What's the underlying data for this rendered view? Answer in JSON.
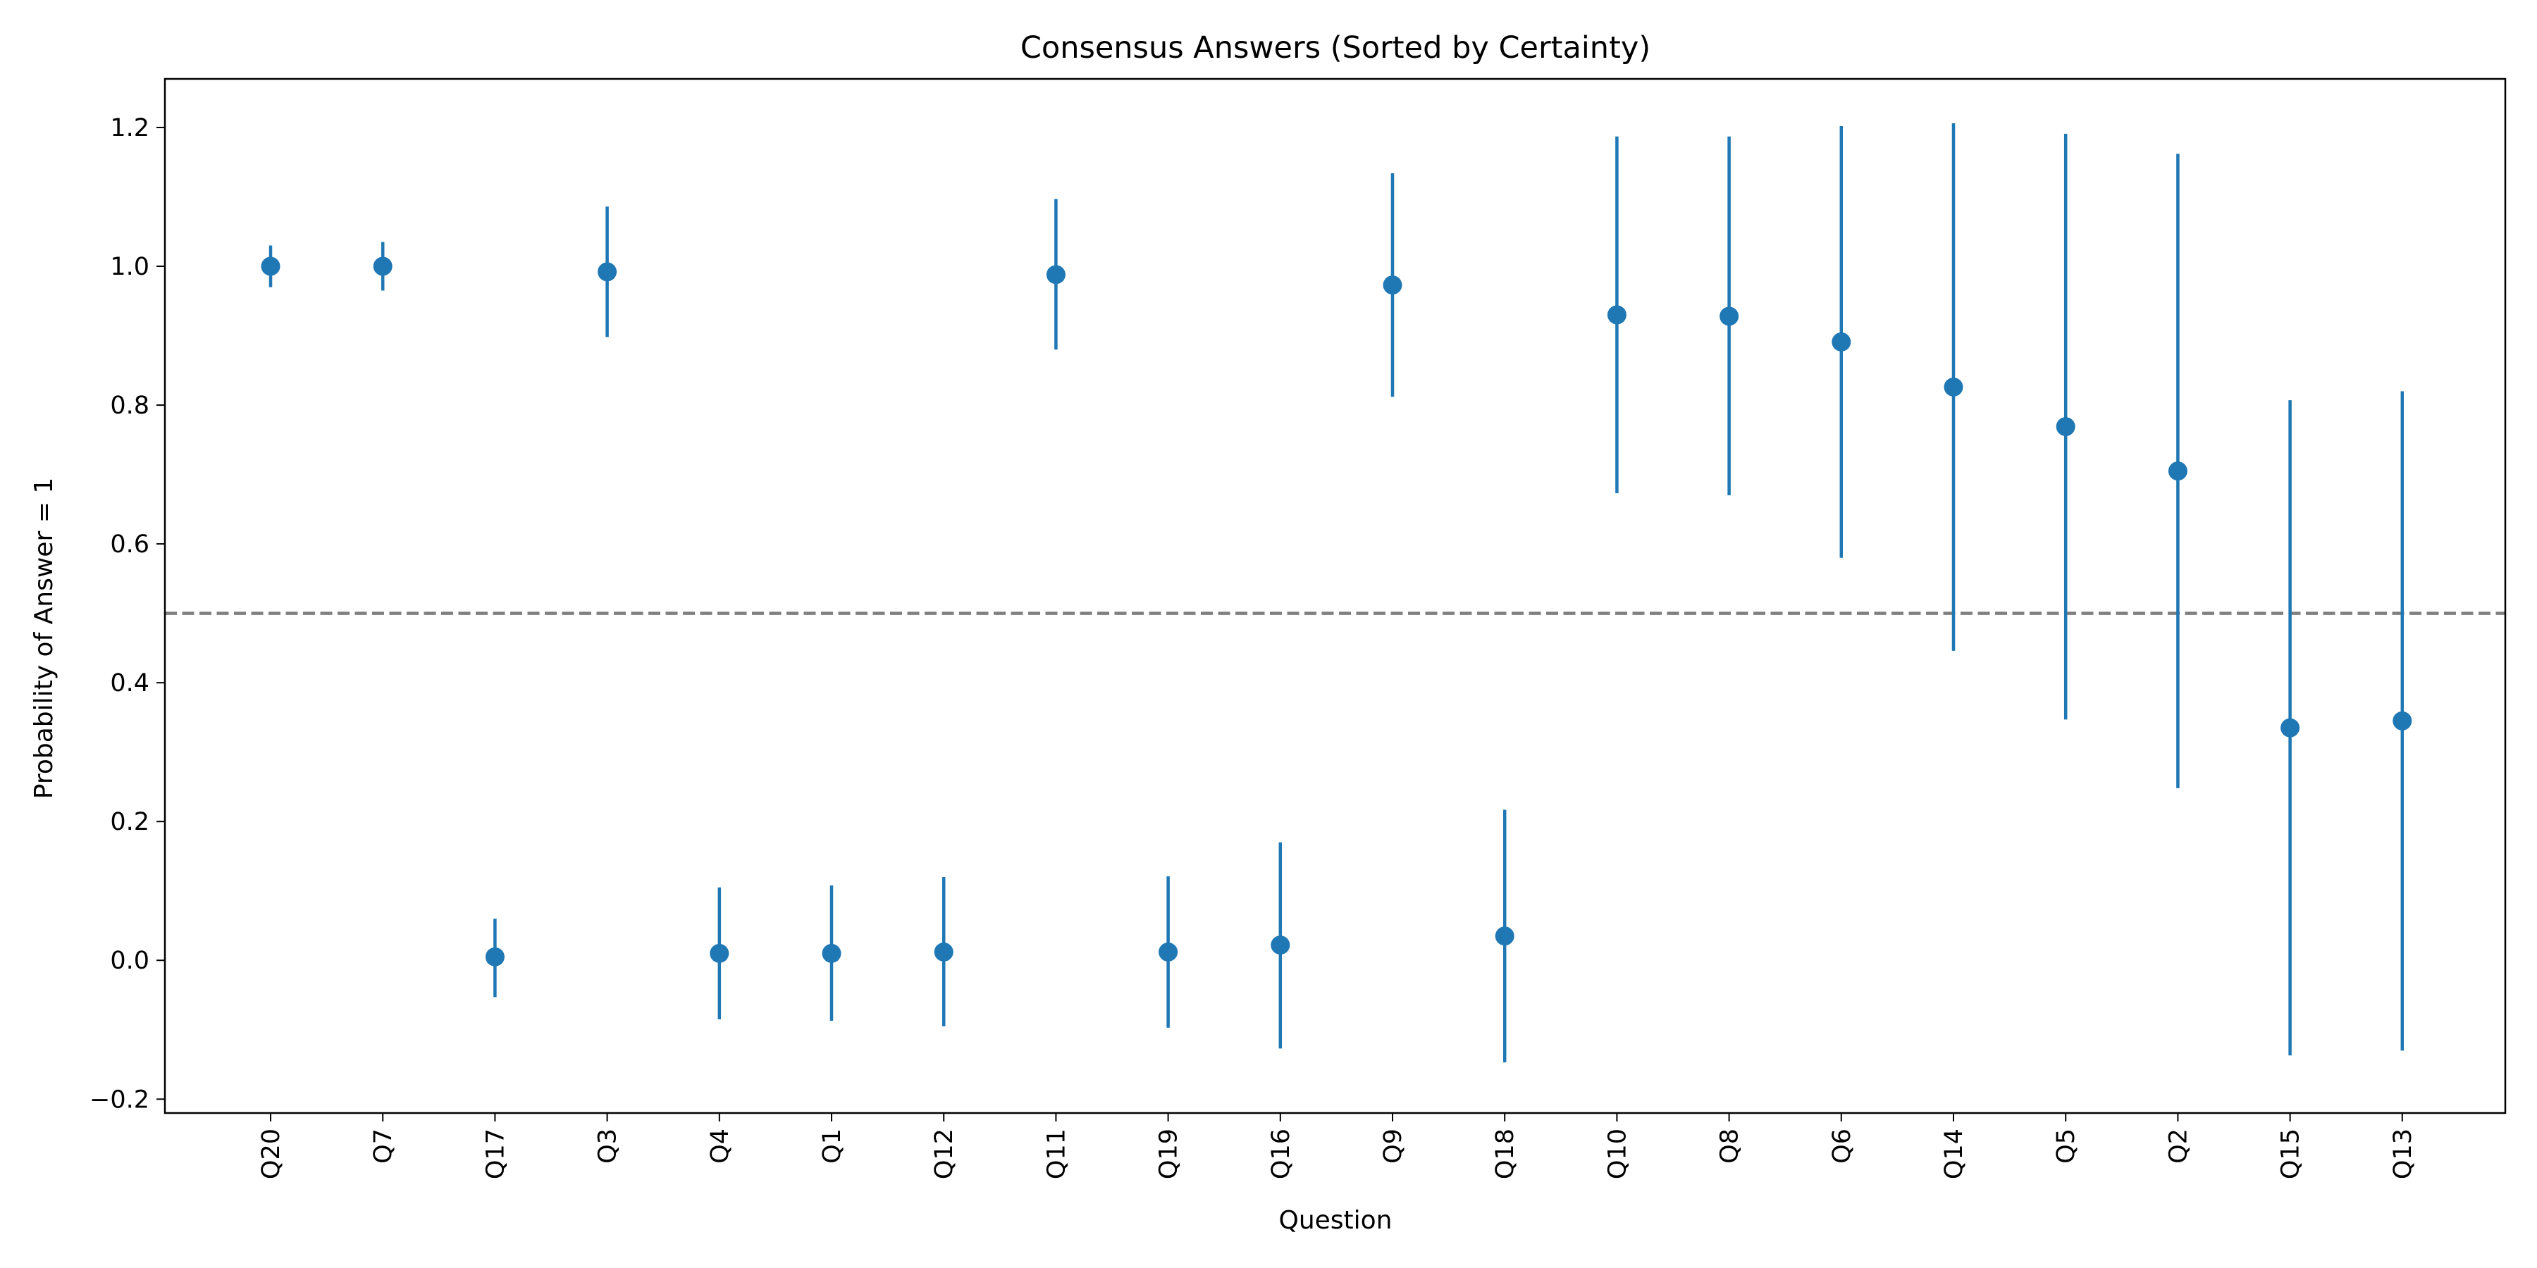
{
  "chart_data": {
    "type": "scatter",
    "title": "Consensus Answers (Sorted by Certainty)",
    "xlabel": "Question",
    "ylabel": "Probability of Answer = 1",
    "ylim": [
      -0.22,
      1.27
    ],
    "yticks": [
      -0.2,
      0.0,
      0.2,
      0.4,
      0.6,
      0.8,
      1.0,
      1.2
    ],
    "ytick_labels": [
      "−0.2",
      "0.0",
      "0.2",
      "0.4",
      "0.6",
      "0.8",
      "1.0",
      "1.2"
    ],
    "grid": false,
    "reference_line": {
      "y": 0.5,
      "style": "dashed",
      "color": "#808080"
    },
    "series_color": "#1f77b4",
    "points": [
      {
        "label": "Q20",
        "value": 1.0,
        "lower": 0.97,
        "upper": 1.03
      },
      {
        "label": "Q7",
        "value": 1.0,
        "lower": 0.965,
        "upper": 1.035
      },
      {
        "label": "Q17",
        "value": 0.005,
        "lower": -0.053,
        "upper": 0.06
      },
      {
        "label": "Q3",
        "value": 0.992,
        "lower": 0.898,
        "upper": 1.086
      },
      {
        "label": "Q4",
        "value": 0.01,
        "lower": -0.085,
        "upper": 0.105
      },
      {
        "label": "Q1",
        "value": 0.01,
        "lower": -0.087,
        "upper": 0.108
      },
      {
        "label": "Q12",
        "value": 0.012,
        "lower": -0.095,
        "upper": 0.12
      },
      {
        "label": "Q11",
        "value": 0.988,
        "lower": 0.88,
        "upper": 1.097
      },
      {
        "label": "Q19",
        "value": 0.012,
        "lower": -0.097,
        "upper": 0.121
      },
      {
        "label": "Q16",
        "value": 0.022,
        "lower": -0.127,
        "upper": 0.17
      },
      {
        "label": "Q9",
        "value": 0.973,
        "lower": 0.812,
        "upper": 1.134
      },
      {
        "label": "Q18",
        "value": 0.035,
        "lower": -0.147,
        "upper": 0.217
      },
      {
        "label": "Q10",
        "value": 0.93,
        "lower": 0.673,
        "upper": 1.187
      },
      {
        "label": "Q8",
        "value": 0.928,
        "lower": 0.67,
        "upper": 1.187
      },
      {
        "label": "Q6",
        "value": 0.891,
        "lower": 0.58,
        "upper": 1.202
      },
      {
        "label": "Q14",
        "value": 0.826,
        "lower": 0.446,
        "upper": 1.206
      },
      {
        "label": "Q5",
        "value": 0.769,
        "lower": 0.347,
        "upper": 1.191
      },
      {
        "label": "Q2",
        "value": 0.705,
        "lower": 0.248,
        "upper": 1.162
      },
      {
        "label": "Q15",
        "value": 0.335,
        "lower": -0.137,
        "upper": 0.807
      },
      {
        "label": "Q13",
        "value": 0.345,
        "lower": -0.13,
        "upper": 0.82
      }
    ]
  }
}
